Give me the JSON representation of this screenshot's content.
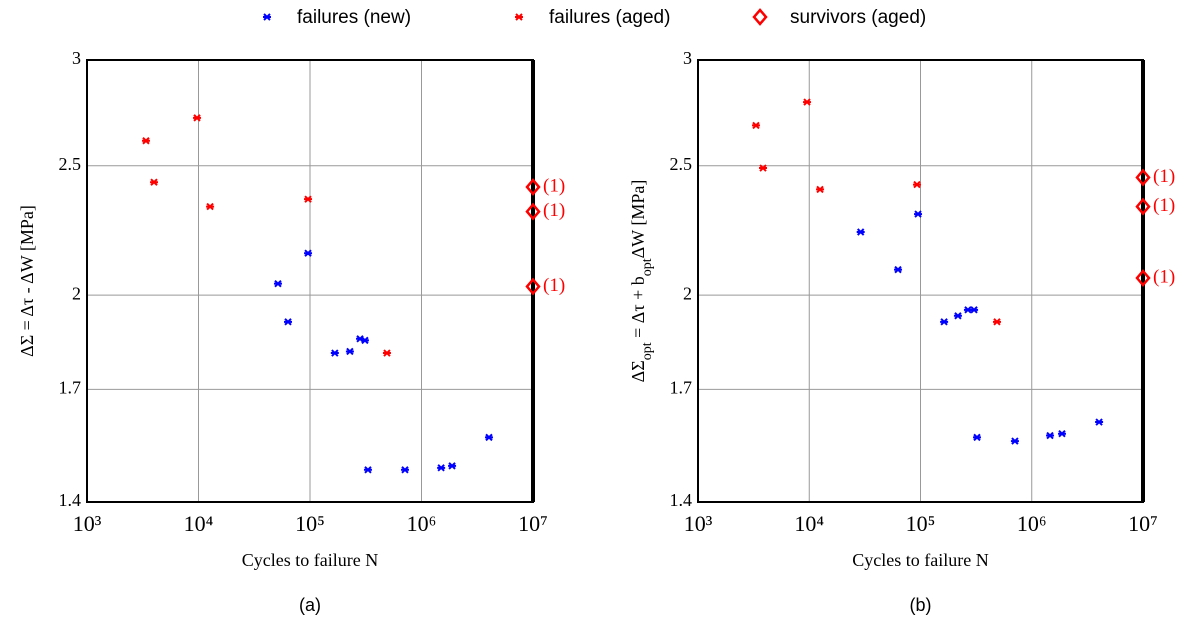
{
  "chart_data": [
    {
      "type": "scatter",
      "caption": "(a)",
      "xlabel": "Cycles to failure N",
      "ylabel": [
        "ΔΣ = Δτ - ΔW [MPa]"
      ],
      "xlog": true,
      "ylog": true,
      "grid": true,
      "legend": "top",
      "xlim": [
        1000,
        10000000
      ],
      "xticks": [
        {
          "value": 1000,
          "label": "10³"
        },
        {
          "value": 10000,
          "label": "10⁴"
        },
        {
          "value": 100000,
          "label": "10⁵"
        },
        {
          "value": 1000000,
          "label": "10⁶"
        },
        {
          "value": 10000000,
          "label": "10⁷"
        }
      ],
      "ylim": [
        1.4,
        3
      ],
      "yticks": [
        1.4,
        1.7,
        2,
        2.5,
        3
      ],
      "series": [
        {
          "name": "failures (new)",
          "color": "#0000ff",
          "marker": "x",
          "x": [
            51600,
            63500,
            96000,
            167000,
            228000,
            281000,
            311000,
            331000,
            711000,
            1500000,
            1880000,
            4030000
          ],
          "values": [
            2.04,
            1.91,
            2.15,
            1.81,
            1.815,
            1.855,
            1.85,
            1.48,
            1.48,
            1.485,
            1.49,
            1.565
          ]
        },
        {
          "name": "failures (aged)",
          "color": "#ff0000",
          "marker": "x",
          "x": [
            3380,
            3990,
            9700,
            12700,
            96000,
            490000
          ],
          "values": [
            2.61,
            2.43,
            2.715,
            2.33,
            2.36,
            1.81
          ]
        },
        {
          "name": "survivors (aged)",
          "color": "#ff0000",
          "marker": "diamond",
          "x": [
            10000000,
            10000000,
            10000000
          ],
          "values": [
            2.41,
            2.31,
            2.03
          ],
          "annotations": [
            "(1)",
            "(1)",
            "(1)"
          ]
        }
      ]
    },
    {
      "type": "scatter",
      "caption": "(b)",
      "xlabel": "Cycles to failure N",
      "ylabel": [
        "ΔΣ",
        "opt",
        " = Δτ + b",
        "opt",
        "ΔW [MPa]"
      ],
      "xlog": true,
      "ylog": true,
      "grid": true,
      "xlim": [
        1000,
        10000000
      ],
      "xticks": [
        {
          "value": 1000,
          "label": "10³"
        },
        {
          "value": 10000,
          "label": "10⁴"
        },
        {
          "value": 100000,
          "label": "10⁵"
        },
        {
          "value": 1000000,
          "label": "10⁶"
        },
        {
          "value": 10000000,
          "label": "10⁷"
        }
      ],
      "ylim": [
        1.4,
        3
      ],
      "yticks": [
        1.4,
        1.7,
        2,
        2.5,
        3
      ],
      "series": [
        {
          "color": "#0000ff",
          "marker": "x",
          "x": [
            29000,
            62800,
            95000,
            163000,
            217000,
            267000,
            303000,
            322000,
            706000,
            1460000,
            1870000,
            4030000
          ],
          "values": [
            2.23,
            2.09,
            2.3,
            1.91,
            1.93,
            1.95,
            1.95,
            1.565,
            1.555,
            1.57,
            1.575,
            1.607
          ]
        },
        {
          "color": "#ff0000",
          "marker": "x",
          "x": [
            3320,
            3840,
            9550,
            12500,
            93000,
            487000
          ],
          "values": [
            2.68,
            2.49,
            2.79,
            2.4,
            2.42,
            1.91
          ]
        },
        {
          "color": "#ff0000",
          "marker": "diamond",
          "x": [
            10000000,
            10000000,
            10000000
          ],
          "values": [
            2.45,
            2.33,
            2.06
          ],
          "annotations": [
            "(1)",
            "(1)",
            "(1)"
          ]
        }
      ]
    }
  ]
}
